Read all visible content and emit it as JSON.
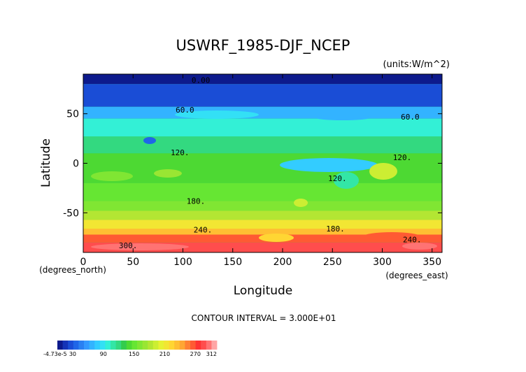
{
  "chart_data": {
    "type": "heatmap",
    "title": "USWRF_1985-DJF_NCEP",
    "units": "(units:W/m^2)",
    "xlabel": "Longitude",
    "ylabel": "Latitude",
    "x_unit_label": "(degrees_east)",
    "y_unit_label": "(degrees_north)",
    "xlim": [
      0,
      360
    ],
    "ylim": [
      -90,
      90
    ],
    "x_ticks": [
      0,
      50,
      100,
      150,
      200,
      250,
      300,
      350
    ],
    "y_ticks": [
      -50,
      0,
      50
    ],
    "contour_interval_text": "CONTOUR INTERVAL = 3.000E+01",
    "contour_labels": [
      {
        "text": "0.00",
        "lon": 118,
        "lat": 84
      },
      {
        "text": "60.0",
        "lon": 102,
        "lat": 54
      },
      {
        "text": "60.0",
        "lon": 328,
        "lat": 47
      },
      {
        "text": "120.",
        "lon": 97,
        "lat": 11
      },
      {
        "text": "120.",
        "lon": 320,
        "lat": 6
      },
      {
        "text": "120.",
        "lon": 255,
        "lat": -15
      },
      {
        "text": "180.",
        "lon": 113,
        "lat": -38
      },
      {
        "text": "180.",
        "lon": 253,
        "lat": -66
      },
      {
        "text": "240.",
        "lon": 120,
        "lat": -67
      },
      {
        "text": "240.",
        "lon": 330,
        "lat": -77
      },
      {
        "text": "300.",
        "lon": 45,
        "lat": -83
      }
    ],
    "latitude_bands": [
      {
        "lat_min": 80,
        "lat_max": 90,
        "value": 5
      },
      {
        "lat_min": 57,
        "lat_max": 80,
        "value": 30
      },
      {
        "lat_min": 45,
        "lat_max": 57,
        "value": 70
      },
      {
        "lat_min": 27,
        "lat_max": 45,
        "value": 100
      },
      {
        "lat_min": 10,
        "lat_max": 27,
        "value": 120
      },
      {
        "lat_min": -20,
        "lat_max": 10,
        "value": 140
      },
      {
        "lat_min": -38,
        "lat_max": -20,
        "value": 150
      },
      {
        "lat_min": -48,
        "lat_max": -38,
        "value": 165
      },
      {
        "lat_min": -57,
        "lat_max": -48,
        "value": 185
      },
      {
        "lat_min": -66,
        "lat_max": -57,
        "value": 210
      },
      {
        "lat_min": -72,
        "lat_max": -66,
        "value": 230
      },
      {
        "lat_min": -80,
        "lat_max": -72,
        "value": 260
      },
      {
        "lat_min": -90,
        "lat_max": -80,
        "value": 290
      }
    ],
    "colorbar": {
      "label_text": [
        "-4.73e-5",
        "30",
        "90",
        "150",
        "210",
        "270",
        "312"
      ],
      "label_values": [
        0,
        30,
        90,
        150,
        210,
        270,
        312
      ],
      "min": 0,
      "max": 312,
      "colors": [
        "#0d1a8c",
        "#1433b8",
        "#1a4dd6",
        "#1f66e8",
        "#2a80f2",
        "#3399ff",
        "#33b3ff",
        "#33ccff",
        "#33e0f5",
        "#33f0d6",
        "#33e6a6",
        "#33d980",
        "#33cc4d",
        "#4dd933",
        "#66e633",
        "#80e633",
        "#99e633",
        "#b3e633",
        "#ccee33",
        "#e6f233",
        "#f2e633",
        "#ffd633",
        "#ffbf33",
        "#ffa633",
        "#ff8033",
        "#ff5a33",
        "#ff3333",
        "#ff4d4d",
        "#ff7373",
        "#ffa6a6"
      ]
    }
  }
}
